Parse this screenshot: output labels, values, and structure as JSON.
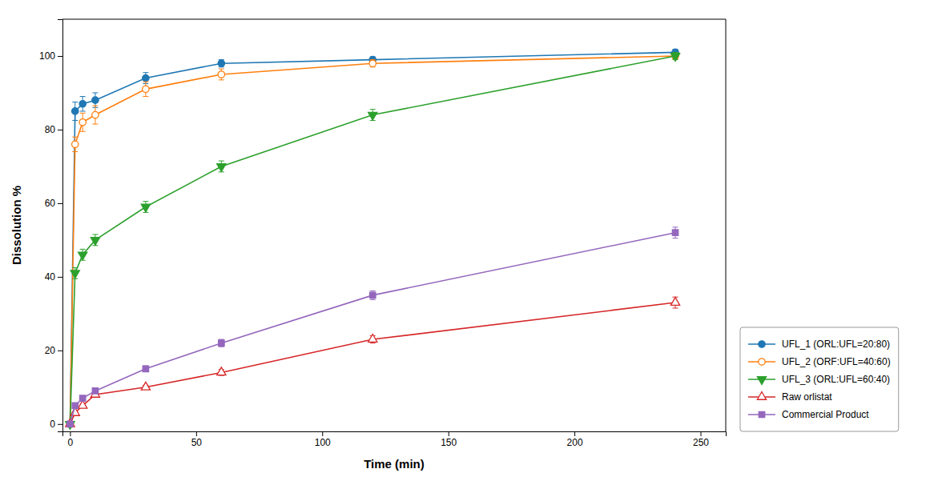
{
  "chart_data": {
    "type": "line",
    "xlabel": "Time (min)",
    "ylabel": "Dissolution %",
    "x": [
      0,
      2,
      5,
      10,
      30,
      60,
      120,
      240
    ],
    "xlim": [
      -3,
      260
    ],
    "ylim": [
      -2,
      110
    ],
    "xticks": [
      0,
      50,
      100,
      150,
      200,
      250
    ],
    "yticks": [
      0,
      20,
      40,
      60,
      80,
      100
    ],
    "grid": false,
    "legend": "lower right",
    "series": [
      {
        "name": "UFL_1 (ORL:UFL=20:80)",
        "marker": "circle",
        "line_style": "solid",
        "values": [
          0,
          85,
          87,
          88,
          94,
          98,
          99,
          101
        ],
        "errors": [
          0,
          2.5,
          2.0,
          2.0,
          1.5,
          1.0,
          0.8,
          0.8
        ]
      },
      {
        "name": "UFL_2 (ORF:UFL=40:60)",
        "marker": "circle-open",
        "line_style": "solid",
        "values": [
          0,
          76,
          82,
          84,
          91,
          95,
          98,
          100
        ],
        "errors": [
          0,
          2.0,
          2.5,
          2.5,
          2.0,
          1.5,
          1.0,
          0.8
        ]
      },
      {
        "name": "UFL_3 (ORL:UFL=60:40)",
        "marker": "triangle-down",
        "line_style": "solid",
        "values": [
          0,
          41,
          46,
          50,
          59,
          70,
          84,
          100
        ],
        "errors": [
          0,
          1.5,
          1.5,
          1.5,
          1.5,
          1.5,
          1.5,
          1.0
        ]
      },
      {
        "name": "Raw orlistat",
        "marker": "triangle-up-open",
        "line_style": "solid",
        "values": [
          0,
          3,
          5,
          8,
          10,
          14,
          23,
          33
        ],
        "errors": [
          0,
          0.5,
          0.5,
          0.5,
          0.5,
          0.8,
          1.0,
          1.5
        ]
      },
      {
        "name": "Commercial Product",
        "marker": "square",
        "line_style": "solid",
        "values": [
          0,
          5,
          7,
          9,
          15,
          22,
          35,
          52
        ],
        "errors": [
          0,
          0.5,
          0.5,
          0.5,
          0.8,
          1.0,
          1.2,
          1.5
        ]
      }
    ]
  }
}
